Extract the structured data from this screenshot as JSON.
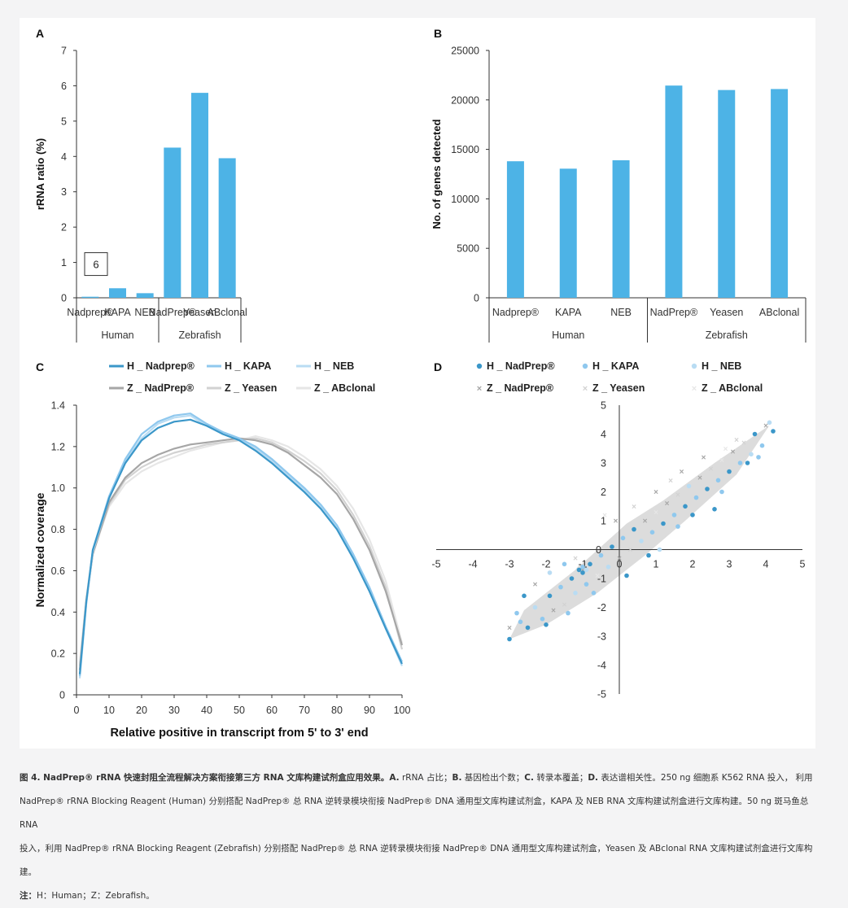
{
  "colors": {
    "bar": "#4db3e6",
    "axis": "#333333",
    "H_Nadprep": "#3b97c9",
    "H_KAPA": "#8fc8ee",
    "H_NEB": "#b9dcf3",
    "Z_NadPrep": "#a6a6a6",
    "Z_Yeasen": "#d2d2d2",
    "Z_ABclonal": "#e6e6e6",
    "scatter_cloud": "#dcdcdc"
  },
  "chart_data": [
    {
      "panel": "A",
      "type": "bar",
      "ylabel": "rRNA ratio (%)",
      "ylim": [
        0,
        7
      ],
      "yticks": [
        "0",
        "1",
        "2",
        "3",
        "4",
        "5",
        "6",
        "7"
      ],
      "categories": [
        "Nadprep®",
        "KAPA",
        "NEB",
        "NadPrep®",
        "Yeasen",
        "ABclonal"
      ],
      "groups": [
        "Human",
        "Zebrafish"
      ],
      "values": [
        0.03,
        0.27,
        0.13,
        4.25,
        5.8,
        3.95
      ],
      "annotation": "6"
    },
    {
      "panel": "B",
      "type": "bar",
      "ylabel": "No. of genes detected",
      "ylim": [
        0,
        25000
      ],
      "yticks": [
        "0",
        "5000",
        "10000",
        "15000",
        "20000",
        "25000"
      ],
      "categories": [
        "Nadprep®",
        "KAPA",
        "NEB",
        "NadPrep®",
        "Yeasen",
        "ABclonal"
      ],
      "groups": [
        "Human",
        "Zebrafish"
      ],
      "values": [
        13800,
        13050,
        13900,
        21450,
        21000,
        21100
      ]
    },
    {
      "panel": "C",
      "type": "line",
      "xlabel": "Relative positive in transcript from 5' to 3' end",
      "ylabel": "Normalized coverage",
      "xlim": [
        0,
        100
      ],
      "ylim": [
        0,
        1.4
      ],
      "xticks": [
        "0",
        "10",
        "20",
        "30",
        "40",
        "50",
        "60",
        "70",
        "80",
        "90",
        "100"
      ],
      "yticks": [
        "0",
        "0.2",
        "0.4",
        "0.6",
        "0.8",
        "1.0",
        "1.2",
        "1.4"
      ],
      "x": [
        1,
        3,
        5,
        10,
        15,
        20,
        25,
        30,
        35,
        40,
        45,
        50,
        55,
        60,
        65,
        70,
        75,
        80,
        85,
        90,
        95,
        100
      ],
      "series": [
        {
          "name": "H _ Nadprep®",
          "key": "H_Nadprep",
          "values": [
            0.1,
            0.45,
            0.7,
            0.95,
            1.12,
            1.23,
            1.29,
            1.32,
            1.33,
            1.3,
            1.26,
            1.23,
            1.18,
            1.12,
            1.05,
            0.98,
            0.9,
            0.8,
            0.66,
            0.5,
            0.32,
            0.15
          ]
        },
        {
          "name": "H _ KAPA",
          "key": "H_KAPA",
          "values": [
            0.09,
            0.44,
            0.7,
            0.96,
            1.14,
            1.26,
            1.32,
            1.35,
            1.36,
            1.31,
            1.27,
            1.24,
            1.2,
            1.14,
            1.07,
            1.0,
            0.92,
            0.82,
            0.68,
            0.52,
            0.33,
            0.16
          ]
        },
        {
          "name": "H _ NEB",
          "key": "H_NEB",
          "values": [
            0.08,
            0.44,
            0.69,
            0.95,
            1.13,
            1.24,
            1.31,
            1.34,
            1.35,
            1.3,
            1.27,
            1.24,
            1.19,
            1.13,
            1.06,
            0.99,
            0.91,
            0.81,
            0.67,
            0.51,
            0.32,
            0.14
          ]
        },
        {
          "name": "Z _ NadPrep®",
          "key": "Z_NadPrep",
          "values": [
            0.12,
            0.45,
            0.68,
            0.93,
            1.05,
            1.12,
            1.16,
            1.19,
            1.21,
            1.22,
            1.23,
            1.24,
            1.23,
            1.21,
            1.17,
            1.11,
            1.05,
            0.97,
            0.85,
            0.7,
            0.5,
            0.24
          ]
        },
        {
          "name": "Z _ Yeasen",
          "key": "Z_Yeasen",
          "values": [
            0.14,
            0.46,
            0.68,
            0.92,
            1.04,
            1.1,
            1.14,
            1.17,
            1.19,
            1.21,
            1.22,
            1.23,
            1.24,
            1.22,
            1.18,
            1.13,
            1.07,
            0.99,
            0.87,
            0.72,
            0.52,
            0.22
          ]
        },
        {
          "name": "Z _ ABclonal",
          "key": "Z_ABclonal",
          "values": [
            0.15,
            0.47,
            0.69,
            0.91,
            1.02,
            1.08,
            1.12,
            1.15,
            1.18,
            1.2,
            1.22,
            1.23,
            1.25,
            1.23,
            1.2,
            1.15,
            1.09,
            1.01,
            0.9,
            0.75,
            0.55,
            0.25
          ]
        }
      ]
    },
    {
      "panel": "D",
      "type": "scatter",
      "xlim": [
        -5,
        5
      ],
      "ylim": [
        -5,
        5
      ],
      "xticks": [
        "-5",
        "-4",
        "-3",
        "-2",
        "-1",
        "0",
        "1",
        "2",
        "3",
        "4",
        "5"
      ],
      "yticks": [
        "-5",
        "-4",
        "-3",
        "-2",
        "-1",
        "0",
        "1",
        "2",
        "3",
        "4",
        "5"
      ],
      "legend": [
        {
          "name": "H _ NadPrep®",
          "key": "H_Nadprep",
          "marker": "circle"
        },
        {
          "name": "H _ KAPA",
          "key": "H_KAPA",
          "marker": "circle"
        },
        {
          "name": "H _ NEB",
          "key": "H_NEB",
          "marker": "circle"
        },
        {
          "name": "Z _ NadPrep®",
          "key": "Z_NadPrep",
          "marker": "cross"
        },
        {
          "name": "Z _ Yeasen",
          "key": "Z_Yeasen",
          "marker": "cross"
        },
        {
          "name": "Z _ ABclonal",
          "key": "Z_ABclonal",
          "marker": "cross"
        }
      ],
      "points": [
        [
          -3.0,
          -3.1,
          0
        ],
        [
          -2.7,
          -2.5,
          1
        ],
        [
          -2.5,
          -2.7,
          0
        ],
        [
          -2.3,
          -2.0,
          2
        ],
        [
          -2.1,
          -2.4,
          1
        ],
        [
          -1.9,
          -1.6,
          0
        ],
        [
          -1.8,
          -2.1,
          3
        ],
        [
          -1.6,
          -1.3,
          1
        ],
        [
          -1.5,
          -1.9,
          4
        ],
        [
          -1.3,
          -1.0,
          0
        ],
        [
          -1.2,
          -1.5,
          2
        ],
        [
          -1.0,
          -0.7,
          3
        ],
        [
          -0.9,
          -1.2,
          1
        ],
        [
          -0.8,
          -0.5,
          0
        ],
        [
          -0.6,
          -0.9,
          5
        ],
        [
          -0.5,
          -0.2,
          1
        ],
        [
          -0.3,
          -0.6,
          2
        ],
        [
          -0.2,
          0.1,
          0
        ],
        [
          0.0,
          -0.3,
          3
        ],
        [
          0.1,
          0.4,
          1
        ],
        [
          0.3,
          0.0,
          4
        ],
        [
          0.4,
          0.7,
          0
        ],
        [
          0.6,
          0.3,
          2
        ],
        [
          0.7,
          1.0,
          3
        ],
        [
          0.9,
          0.6,
          1
        ],
        [
          1.0,
          1.3,
          5
        ],
        [
          1.2,
          0.9,
          0
        ],
        [
          1.3,
          1.6,
          3
        ],
        [
          1.5,
          1.2,
          1
        ],
        [
          1.6,
          1.9,
          4
        ],
        [
          1.8,
          1.5,
          0
        ],
        [
          1.9,
          2.2,
          2
        ],
        [
          2.1,
          1.8,
          1
        ],
        [
          2.2,
          2.5,
          3
        ],
        [
          2.4,
          2.1,
          0
        ],
        [
          2.5,
          2.8,
          4
        ],
        [
          2.7,
          2.4,
          1
        ],
        [
          2.8,
          3.1,
          5
        ],
        [
          3.0,
          2.7,
          0
        ],
        [
          3.1,
          3.4,
          3
        ],
        [
          3.3,
          3.0,
          1
        ],
        [
          3.4,
          3.7,
          4
        ],
        [
          3.6,
          3.3,
          2
        ],
        [
          3.7,
          4.0,
          0
        ],
        [
          3.9,
          3.6,
          1
        ],
        [
          4.0,
          4.3,
          3
        ],
        [
          4.2,
          4.1,
          0
        ],
        [
          4.1,
          4.4,
          2
        ],
        [
          -1.0,
          -0.8,
          0
        ],
        [
          -1.0,
          -0.6,
          1
        ],
        [
          -0.9,
          -0.7,
          2
        ],
        [
          -1.1,
          -0.7,
          0
        ],
        [
          -2.8,
          -2.2,
          1
        ],
        [
          -2.6,
          -1.6,
          0
        ],
        [
          -1.5,
          -0.5,
          1
        ],
        [
          -1.9,
          -0.8,
          2
        ],
        [
          -0.7,
          -1.5,
          1
        ],
        [
          0.8,
          -0.2,
          0
        ],
        [
          1.6,
          0.8,
          1
        ],
        [
          2.0,
          1.2,
          0
        ],
        [
          2.8,
          2.0,
          1
        ],
        [
          2.6,
          1.4,
          0
        ],
        [
          1.0,
          2.0,
          3
        ],
        [
          0.4,
          1.5,
          4
        ],
        [
          -0.4,
          1.2,
          5
        ],
        [
          -0.1,
          1.0,
          3
        ],
        [
          1.4,
          2.4,
          4
        ],
        [
          2.3,
          3.2,
          3
        ],
        [
          2.9,
          3.5,
          5
        ],
        [
          -2.3,
          -1.2,
          3
        ],
        [
          -1.2,
          -0.3,
          4
        ],
        [
          1.7,
          2.7,
          3
        ],
        [
          3.2,
          3.8,
          4
        ],
        [
          -2.0,
          -2.6,
          0
        ],
        [
          -1.4,
          -2.2,
          1
        ],
        [
          0.2,
          -0.9,
          0
        ],
        [
          1.1,
          0.0,
          2
        ],
        [
          3.5,
          3.0,
          0
        ],
        [
          3.8,
          3.2,
          1
        ],
        [
          -3.0,
          -2.7,
          3
        ]
      ]
    }
  ],
  "caption": {
    "fig_label": "图 4. NadPrep® rRNA 快速封阻全流程解决方案衔接第三方 RNA 文库构建试剂盒应用效果。",
    "a_label": "A.",
    "a_text": " rRNA 占比；",
    "b_label": "B.",
    "b_text": " 基因检出个数；",
    "c_label": "C.",
    "c_text": " 转录本覆盖；",
    "d_label": "D.",
    "d_text": " 表达谱相关性。250 ng 细胞系 K562 RNA 投入， 利用",
    "line2": "NadPrep® rRNA Blocking Reagent (Human) 分别搭配 NadPrep® 总 RNA 逆转录模块衔接 NadPrep® DNA 通用型文库构建试剂盒，KAPA 及 NEB RNA 文库构建试剂盒进行文库构建。50 ng 斑马鱼总 RNA",
    "line3": "投入，利用 NadPrep® rRNA Blocking Reagent (Zebrafish) 分别搭配 NadPrep® 总 RNA 逆转录模块衔接 NadPrep® DNA 通用型文库构建试剂盒，Yeasen 及 ABclonal RNA 文库构建试剂盒进行文库构建。",
    "note_label": "注：",
    "note_text": "H：Human；Z：Zebrafish。"
  }
}
